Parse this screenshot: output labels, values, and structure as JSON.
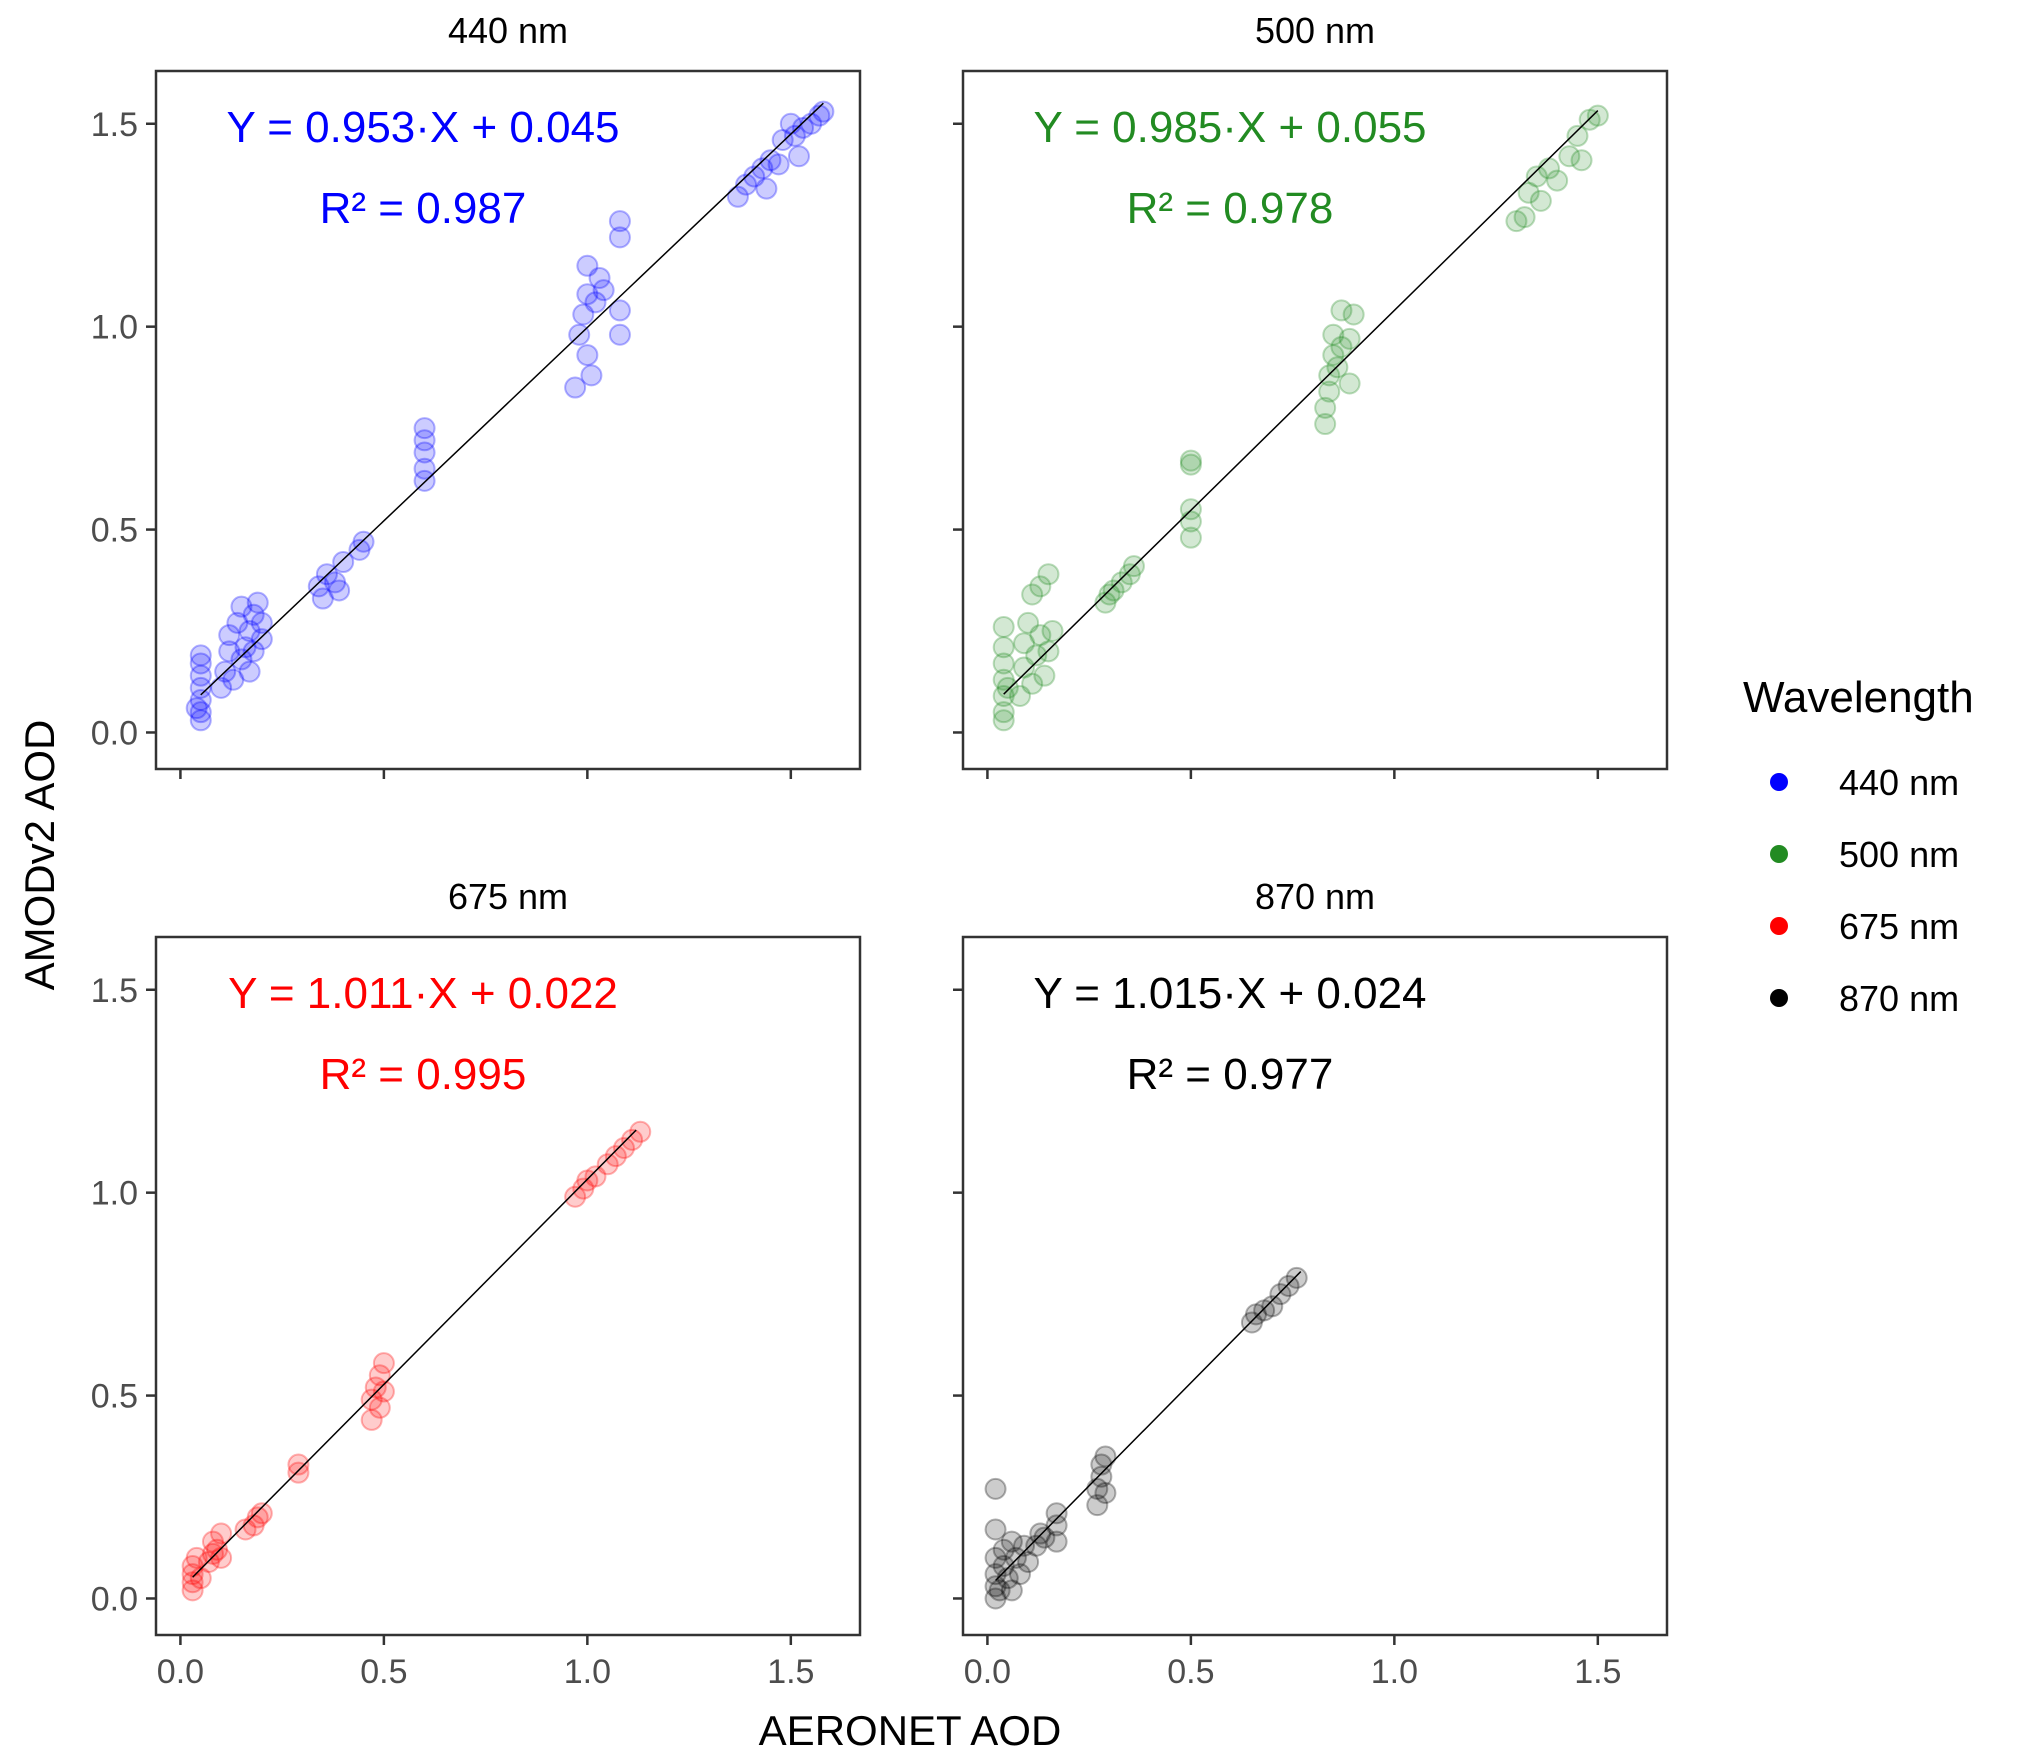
{
  "chart_data": {
    "type": "scatter",
    "xlabel": "AERONET AOD",
    "ylabel": "AMODv2 AOD",
    "xlim": [
      -0.06,
      1.67
    ],
    "ylim": [
      -0.09,
      1.63
    ],
    "xticks": [
      "0.0",
      "0.5",
      "1.0",
      "1.5"
    ],
    "yticks": [
      "0.0",
      "0.5",
      "1.0",
      "1.5"
    ],
    "tick_values": [
      0,
      0.5,
      1.0,
      1.5
    ],
    "legend": {
      "title": "Wavelength",
      "position": "right",
      "entries": [
        "440 nm",
        "500 nm",
        "675 nm",
        "870 nm"
      ]
    },
    "panels": [
      {
        "title": "440 nm",
        "color": "#0000ff",
        "equation": "Y = 0.953·X + 0.045",
        "r2": "R² = 0.987",
        "slope": 0.953,
        "intercept": 0.045,
        "fit_x": [
          0.05,
          1.58
        ],
        "points": [
          [
            0.05,
            0.03
          ],
          [
            0.05,
            0.05
          ],
          [
            0.05,
            0.08
          ],
          [
            0.05,
            0.11
          ],
          [
            0.05,
            0.14
          ],
          [
            0.05,
            0.17
          ],
          [
            0.05,
            0.19
          ],
          [
            0.04,
            0.06
          ],
          [
            0.1,
            0.11
          ],
          [
            0.11,
            0.15
          ],
          [
            0.12,
            0.2
          ],
          [
            0.12,
            0.24
          ],
          [
            0.13,
            0.13
          ],
          [
            0.14,
            0.27
          ],
          [
            0.15,
            0.18
          ],
          [
            0.15,
            0.31
          ],
          [
            0.16,
            0.21
          ],
          [
            0.17,
            0.15
          ],
          [
            0.17,
            0.25
          ],
          [
            0.18,
            0.29
          ],
          [
            0.18,
            0.2
          ],
          [
            0.19,
            0.32
          ],
          [
            0.2,
            0.23
          ],
          [
            0.2,
            0.27
          ],
          [
            0.34,
            0.36
          ],
          [
            0.35,
            0.33
          ],
          [
            0.36,
            0.39
          ],
          [
            0.38,
            0.37
          ],
          [
            0.39,
            0.35
          ],
          [
            0.4,
            0.42
          ],
          [
            0.44,
            0.45
          ],
          [
            0.45,
            0.47
          ],
          [
            0.6,
            0.62
          ],
          [
            0.6,
            0.65
          ],
          [
            0.6,
            0.69
          ],
          [
            0.6,
            0.72
          ],
          [
            0.6,
            0.75
          ],
          [
            0.97,
            0.85
          ],
          [
            0.98,
            0.98
          ],
          [
            0.99,
            1.03
          ],
          [
            1.0,
            1.08
          ],
          [
            1.0,
            1.15
          ],
          [
            1.0,
            0.93
          ],
          [
            1.01,
            0.88
          ],
          [
            1.02,
            1.06
          ],
          [
            1.03,
            1.12
          ],
          [
            1.04,
            1.09
          ],
          [
            1.08,
            0.98
          ],
          [
            1.08,
            1.04
          ],
          [
            1.08,
            1.22
          ],
          [
            1.08,
            1.26
          ],
          [
            1.37,
            1.32
          ],
          [
            1.39,
            1.35
          ],
          [
            1.41,
            1.37
          ],
          [
            1.43,
            1.39
          ],
          [
            1.44,
            1.34
          ],
          [
            1.45,
            1.41
          ],
          [
            1.47,
            1.4
          ],
          [
            1.48,
            1.46
          ],
          [
            1.5,
            1.5
          ],
          [
            1.51,
            1.47
          ],
          [
            1.52,
            1.42
          ],
          [
            1.53,
            1.49
          ],
          [
            1.55,
            1.5
          ],
          [
            1.57,
            1.52
          ],
          [
            1.58,
            1.53
          ]
        ]
      },
      {
        "title": "500 nm",
        "color": "#228b22",
        "equation": "Y = 0.985·X + 0.055",
        "r2": "R² = 0.978",
        "slope": 0.985,
        "intercept": 0.055,
        "fit_x": [
          0.04,
          1.5
        ],
        "points": [
          [
            0.04,
            0.03
          ],
          [
            0.04,
            0.05
          ],
          [
            0.04,
            0.09
          ],
          [
            0.04,
            0.13
          ],
          [
            0.04,
            0.17
          ],
          [
            0.04,
            0.21
          ],
          [
            0.04,
            0.26
          ],
          [
            0.05,
            0.11
          ],
          [
            0.08,
            0.09
          ],
          [
            0.09,
            0.16
          ],
          [
            0.09,
            0.22
          ],
          [
            0.1,
            0.27
          ],
          [
            0.11,
            0.12
          ],
          [
            0.11,
            0.34
          ],
          [
            0.12,
            0.19
          ],
          [
            0.13,
            0.24
          ],
          [
            0.13,
            0.36
          ],
          [
            0.14,
            0.14
          ],
          [
            0.15,
            0.2
          ],
          [
            0.15,
            0.39
          ],
          [
            0.16,
            0.25
          ],
          [
            0.29,
            0.32
          ],
          [
            0.3,
            0.34
          ],
          [
            0.31,
            0.35
          ],
          [
            0.33,
            0.37
          ],
          [
            0.35,
            0.39
          ],
          [
            0.36,
            0.41
          ],
          [
            0.5,
            0.48
          ],
          [
            0.5,
            0.52
          ],
          [
            0.5,
            0.55
          ],
          [
            0.5,
            0.66
          ],
          [
            0.5,
            0.67
          ],
          [
            0.83,
            0.76
          ],
          [
            0.83,
            0.8
          ],
          [
            0.84,
            0.84
          ],
          [
            0.84,
            0.88
          ],
          [
            0.85,
            0.93
          ],
          [
            0.85,
            0.98
          ],
          [
            0.86,
            0.9
          ],
          [
            0.87,
            0.95
          ],
          [
            0.87,
            1.04
          ],
          [
            0.89,
            0.97
          ],
          [
            0.9,
            1.03
          ],
          [
            0.89,
            0.86
          ],
          [
            1.3,
            1.26
          ],
          [
            1.32,
            1.27
          ],
          [
            1.33,
            1.33
          ],
          [
            1.35,
            1.37
          ],
          [
            1.36,
            1.31
          ],
          [
            1.38,
            1.39
          ],
          [
            1.4,
            1.36
          ],
          [
            1.43,
            1.42
          ],
          [
            1.45,
            1.47
          ],
          [
            1.46,
            1.41
          ],
          [
            1.48,
            1.51
          ],
          [
            1.5,
            1.52
          ]
        ]
      },
      {
        "title": "675 nm",
        "color": "#ff0000",
        "equation": "Y = 1.011·X + 0.022",
        "r2": "R² = 0.995",
        "slope": 1.011,
        "intercept": 0.022,
        "fit_x": [
          0.03,
          1.12
        ],
        "points": [
          [
            0.03,
            0.02
          ],
          [
            0.03,
            0.04
          ],
          [
            0.03,
            0.06
          ],
          [
            0.03,
            0.08
          ],
          [
            0.04,
            0.1
          ],
          [
            0.05,
            0.05
          ],
          [
            0.07,
            0.09
          ],
          [
            0.08,
            0.11
          ],
          [
            0.08,
            0.14
          ],
          [
            0.09,
            0.12
          ],
          [
            0.1,
            0.16
          ],
          [
            0.1,
            0.1
          ],
          [
            0.16,
            0.17
          ],
          [
            0.18,
            0.18
          ],
          [
            0.19,
            0.2
          ],
          [
            0.2,
            0.21
          ],
          [
            0.29,
            0.31
          ],
          [
            0.29,
            0.33
          ],
          [
            0.47,
            0.44
          ],
          [
            0.47,
            0.49
          ],
          [
            0.48,
            0.52
          ],
          [
            0.49,
            0.55
          ],
          [
            0.49,
            0.47
          ],
          [
            0.5,
            0.51
          ],
          [
            0.5,
            0.58
          ],
          [
            0.97,
            0.99
          ],
          [
            0.99,
            1.01
          ],
          [
            1.0,
            1.03
          ],
          [
            1.02,
            1.04
          ],
          [
            1.05,
            1.07
          ],
          [
            1.07,
            1.09
          ],
          [
            1.09,
            1.11
          ],
          [
            1.11,
            1.13
          ],
          [
            1.13,
            1.15
          ]
        ]
      },
      {
        "title": "870 nm",
        "color": "#000000",
        "equation": "Y = 1.015·X + 0.024",
        "r2": "R² = 0.977",
        "slope": 1.015,
        "intercept": 0.024,
        "fit_x": [
          0.02,
          0.77
        ],
        "points": [
          [
            0.02,
            0.0
          ],
          [
            0.02,
            0.03
          ],
          [
            0.02,
            0.06
          ],
          [
            0.02,
            0.1
          ],
          [
            0.02,
            0.17
          ],
          [
            0.02,
            0.27
          ],
          [
            0.03,
            0.02
          ],
          [
            0.04,
            0.08
          ],
          [
            0.04,
            0.12
          ],
          [
            0.05,
            0.05
          ],
          [
            0.06,
            0.14
          ],
          [
            0.06,
            0.02
          ],
          [
            0.07,
            0.1
          ],
          [
            0.08,
            0.06
          ],
          [
            0.09,
            0.13
          ],
          [
            0.1,
            0.09
          ],
          [
            0.12,
            0.13
          ],
          [
            0.13,
            0.16
          ],
          [
            0.14,
            0.15
          ],
          [
            0.17,
            0.18
          ],
          [
            0.17,
            0.21
          ],
          [
            0.17,
            0.14
          ],
          [
            0.27,
            0.23
          ],
          [
            0.27,
            0.27
          ],
          [
            0.28,
            0.3
          ],
          [
            0.28,
            0.33
          ],
          [
            0.29,
            0.35
          ],
          [
            0.29,
            0.26
          ],
          [
            0.65,
            0.68
          ],
          [
            0.66,
            0.7
          ],
          [
            0.68,
            0.71
          ],
          [
            0.7,
            0.72
          ],
          [
            0.72,
            0.75
          ],
          [
            0.74,
            0.77
          ],
          [
            0.76,
            0.79
          ]
        ]
      }
    ]
  }
}
